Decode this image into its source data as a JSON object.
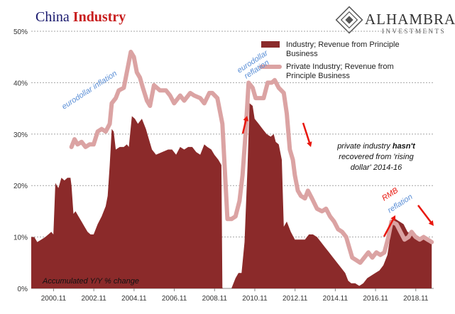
{
  "title": {
    "part1": "China",
    "part2": "Industry",
    "color1": "#1a1a6e",
    "color2": "#c81e1e"
  },
  "logo": {
    "name": "ALHAMBRA",
    "sub": "INVESTMENTS"
  },
  "colors": {
    "industry": "#8b2a2a",
    "private": "#dba3a3",
    "grid": "#a6a6a6",
    "arrow": "#e8170e",
    "annot_blue": "#5b8fd6"
  },
  "chart_data": {
    "type": "area",
    "xlabel": "",
    "ylabel": "",
    "ylim": [
      0,
      50
    ],
    "y_ticks": [
      "0%",
      "10%",
      "20%",
      "30%",
      "40%",
      "50%"
    ],
    "x_ticks": [
      "2000.11",
      "2002.11",
      "2004.11",
      "2006.11",
      "2008.11",
      "2010.11",
      "2012.11",
      "2014.11",
      "2016.11",
      "2018.11"
    ],
    "x_range": [
      1999.0,
      2019.0
    ],
    "legend_position": "top-right",
    "grid": true,
    "series": [
      {
        "name": "Industry; Revenue from Principle Business",
        "render": "area",
        "points": [
          [
            1999.0,
            10
          ],
          [
            1999.15,
            10
          ],
          [
            1999.3,
            9
          ],
          [
            1999.5,
            9.5
          ],
          [
            1999.7,
            10
          ],
          [
            1999.85,
            10.5
          ],
          [
            2000.0,
            11
          ],
          [
            2000.1,
            10.5
          ],
          [
            2000.2,
            20.5
          ],
          [
            2000.35,
            19.5
          ],
          [
            2000.5,
            21.5
          ],
          [
            2000.65,
            21
          ],
          [
            2000.8,
            21.5
          ],
          [
            2000.95,
            21.5
          ],
          [
            2001.0,
            20
          ],
          [
            2001.1,
            14.5
          ],
          [
            2001.2,
            15
          ],
          [
            2001.35,
            14
          ],
          [
            2001.5,
            13
          ],
          [
            2001.65,
            12
          ],
          [
            2001.8,
            11
          ],
          [
            2001.95,
            10.5
          ],
          [
            2002.1,
            10.5
          ],
          [
            2002.3,
            12.5
          ],
          [
            2002.5,
            14
          ],
          [
            2002.7,
            16
          ],
          [
            2002.8,
            18
          ],
          [
            2002.9,
            24
          ],
          [
            2003.0,
            31
          ],
          [
            2003.1,
            30.5
          ],
          [
            2003.2,
            27
          ],
          [
            2003.4,
            27.5
          ],
          [
            2003.6,
            27.5
          ],
          [
            2003.75,
            28
          ],
          [
            2003.85,
            27.5
          ],
          [
            2004.0,
            33.5
          ],
          [
            2004.15,
            33
          ],
          [
            2004.3,
            32
          ],
          [
            2004.5,
            33
          ],
          [
            2004.7,
            31
          ],
          [
            2004.85,
            29
          ],
          [
            2005.0,
            27
          ],
          [
            2005.2,
            26
          ],
          [
            2005.5,
            26.5
          ],
          [
            2005.8,
            27
          ],
          [
            2006.0,
            27
          ],
          [
            2006.2,
            26
          ],
          [
            2006.4,
            27.5
          ],
          [
            2006.6,
            27
          ],
          [
            2006.8,
            27.5
          ],
          [
            2007.0,
            27.5
          ],
          [
            2007.2,
            26.5
          ],
          [
            2007.4,
            26
          ],
          [
            2007.6,
            28
          ],
          [
            2007.75,
            27.5
          ],
          [
            2007.95,
            27
          ],
          [
            2008.1,
            26
          ],
          [
            2008.3,
            25
          ],
          [
            2008.45,
            24
          ],
          [
            2008.5,
            0.1
          ],
          [
            2008.55,
            0
          ],
          [
            2008.95,
            0
          ],
          [
            2009.0,
            0.5
          ],
          [
            2009.15,
            2
          ],
          [
            2009.3,
            3
          ],
          [
            2009.45,
            3
          ],
          [
            2009.6,
            9
          ],
          [
            2009.75,
            24
          ],
          [
            2009.85,
            36
          ],
          [
            2010.0,
            35.5
          ],
          [
            2010.1,
            33
          ],
          [
            2010.3,
            32
          ],
          [
            2010.5,
            31
          ],
          [
            2010.7,
            30
          ],
          [
            2010.9,
            29.5
          ],
          [
            2011.05,
            30
          ],
          [
            2011.15,
            28.5
          ],
          [
            2011.3,
            28
          ],
          [
            2011.45,
            25
          ],
          [
            2011.55,
            12
          ],
          [
            2011.7,
            13
          ],
          [
            2011.9,
            11
          ],
          [
            2012.1,
            9.5
          ],
          [
            2012.3,
            9.5
          ],
          [
            2012.6,
            9.5
          ],
          [
            2012.8,
            10.5
          ],
          [
            2013.0,
            10.5
          ],
          [
            2013.2,
            10
          ],
          [
            2013.4,
            9
          ],
          [
            2013.6,
            8
          ],
          [
            2013.8,
            7
          ],
          [
            2014.0,
            6
          ],
          [
            2014.2,
            5
          ],
          [
            2014.4,
            4
          ],
          [
            2014.6,
            3
          ],
          [
            2014.75,
            1.5
          ],
          [
            2014.9,
            1
          ],
          [
            2015.1,
            1
          ],
          [
            2015.3,
            0.5
          ],
          [
            2015.5,
            1
          ],
          [
            2015.7,
            2
          ],
          [
            2015.9,
            2.5
          ],
          [
            2016.1,
            3
          ],
          [
            2016.3,
            3.5
          ],
          [
            2016.5,
            4.5
          ],
          [
            2016.7,
            6.5
          ],
          [
            2016.8,
            9
          ],
          [
            2016.95,
            13.5
          ],
          [
            2017.1,
            13.5
          ],
          [
            2017.3,
            13
          ],
          [
            2017.5,
            12.5
          ],
          [
            2017.7,
            11
          ],
          [
            2017.9,
            10.5
          ],
          [
            2018.1,
            10.5
          ],
          [
            2018.3,
            10
          ],
          [
            2018.5,
            9.5
          ],
          [
            2018.7,
            9
          ],
          [
            2018.9,
            8.8
          ]
        ]
      },
      {
        "name": "Private Industry; Revenue from Principle Business",
        "render": "line",
        "points": [
          [
            2001.0,
            27.5
          ],
          [
            2001.15,
            29
          ],
          [
            2001.3,
            28
          ],
          [
            2001.5,
            28.5
          ],
          [
            2001.7,
            27.5
          ],
          [
            2001.9,
            28
          ],
          [
            2002.1,
            28
          ],
          [
            2002.3,
            30.5
          ],
          [
            2002.5,
            31
          ],
          [
            2002.7,
            30.5
          ],
          [
            2002.9,
            32
          ],
          [
            2003.0,
            36
          ],
          [
            2003.2,
            37
          ],
          [
            2003.35,
            38.5
          ],
          [
            2003.6,
            39
          ],
          [
            2003.8,
            43
          ],
          [
            2003.95,
            46
          ],
          [
            2004.1,
            45
          ],
          [
            2004.25,
            42
          ],
          [
            2004.4,
            41
          ],
          [
            2004.55,
            39
          ],
          [
            2004.75,
            36.5
          ],
          [
            2004.9,
            35.5
          ],
          [
            2005.1,
            39.5
          ],
          [
            2005.4,
            38.5
          ],
          [
            2005.7,
            38.5
          ],
          [
            2005.9,
            37.5
          ],
          [
            2006.1,
            36
          ],
          [
            2006.4,
            37.5
          ],
          [
            2006.6,
            36.5
          ],
          [
            2006.9,
            38
          ],
          [
            2007.1,
            37.5
          ],
          [
            2007.4,
            37
          ],
          [
            2007.6,
            36
          ],
          [
            2007.85,
            38
          ],
          [
            2008.0,
            38
          ],
          [
            2008.25,
            37
          ],
          [
            2008.5,
            32
          ],
          [
            2008.75,
            13.5
          ],
          [
            2008.95,
            13.5
          ],
          [
            2009.15,
            14
          ],
          [
            2009.35,
            17
          ],
          [
            2009.5,
            22
          ],
          [
            2009.65,
            30
          ],
          [
            2009.8,
            40
          ],
          [
            2010.0,
            39
          ],
          [
            2010.15,
            37
          ],
          [
            2010.35,
            37
          ],
          [
            2010.55,
            37
          ],
          [
            2010.75,
            40
          ],
          [
            2010.95,
            40
          ],
          [
            2011.1,
            40.5
          ],
          [
            2011.3,
            39
          ],
          [
            2011.55,
            38
          ],
          [
            2011.7,
            34
          ],
          [
            2011.85,
            27
          ],
          [
            2012.0,
            25
          ],
          [
            2012.1,
            22
          ],
          [
            2012.25,
            19
          ],
          [
            2012.4,
            18
          ],
          [
            2012.6,
            17.5
          ],
          [
            2012.75,
            19
          ],
          [
            2012.95,
            17.5
          ],
          [
            2013.2,
            15.5
          ],
          [
            2013.45,
            15
          ],
          [
            2013.65,
            15.5
          ],
          [
            2013.85,
            14
          ],
          [
            2014.05,
            13
          ],
          [
            2014.25,
            11.5
          ],
          [
            2014.45,
            11
          ],
          [
            2014.65,
            10
          ],
          [
            2014.8,
            8
          ],
          [
            2014.95,
            6
          ],
          [
            2015.15,
            5.5
          ],
          [
            2015.35,
            5
          ],
          [
            2015.55,
            6
          ],
          [
            2015.75,
            7
          ],
          [
            2015.95,
            6
          ],
          [
            2016.15,
            7
          ],
          [
            2016.35,
            6.5
          ],
          [
            2016.55,
            7
          ],
          [
            2016.75,
            10
          ],
          [
            2016.9,
            13
          ],
          [
            2017.15,
            12.5
          ],
          [
            2017.35,
            11
          ],
          [
            2017.55,
            9.5
          ],
          [
            2017.75,
            10
          ],
          [
            2017.9,
            11
          ],
          [
            2018.1,
            10
          ],
          [
            2018.3,
            9.5
          ],
          [
            2018.5,
            10
          ],
          [
            2018.7,
            9.5
          ],
          [
            2018.9,
            9
          ]
        ]
      }
    ],
    "annotations": {
      "eurodollar_inflation": "eurodollar inflation",
      "eurodollar": "eurodollar",
      "reflation": "reflation",
      "rmb": "RMB",
      "rmb_reflation": "reflation",
      "private_line1_pre": "private industry ",
      "private_line1_bold": "hasn't",
      "private_line2": "recovered from 'rising",
      "private_line3": "dollar' 2014-16",
      "footnote": "Accumulated Y/Y % change"
    }
  }
}
